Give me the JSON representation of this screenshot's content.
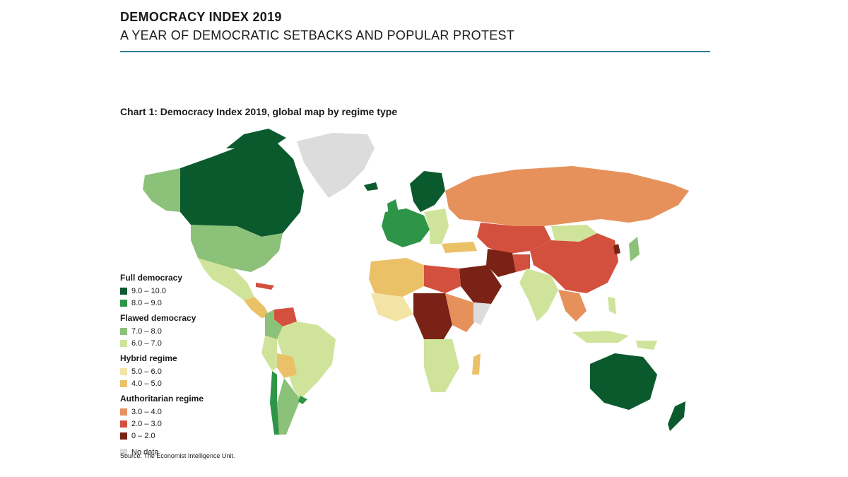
{
  "header": {
    "title": "DEMOCRACY INDEX 2019",
    "subtitle": "A YEAR OF DEMOCRATIC SETBACKS AND POPULAR PROTEST"
  },
  "chart": {
    "title": "Chart 1: Democracy Index 2019, global map by regime type",
    "source": "Source: The Economist Intelligence Unit."
  },
  "legend": [
    {
      "group": "Full democracy",
      "items": [
        {
          "label": "9.0 – 10.0",
          "color": "#0b5a2d"
        },
        {
          "label": "8.0 – 9.0",
          "color": "#2e9447"
        }
      ]
    },
    {
      "group": "Flawed democracy",
      "items": [
        {
          "label": "7.0 – 8.0",
          "color": "#8cc17a"
        },
        {
          "label": "6.0 – 7.0",
          "color": "#cfe49a"
        }
      ]
    },
    {
      "group": "Hybrid regime",
      "items": [
        {
          "label": "5.0 – 6.0",
          "color": "#f3e3a5"
        },
        {
          "label": "4.0 – 5.0",
          "color": "#ebc168"
        }
      ]
    },
    {
      "group": "Authoritarian regime",
      "items": [
        {
          "label": "3.0 – 4.0",
          "color": "#e6915c"
        },
        {
          "label": "2.0 – 3.0",
          "color": "#d3503e"
        },
        {
          "label": "0 – 2.0",
          "color": "#7a2216"
        }
      ]
    },
    {
      "group": "",
      "items": [
        {
          "label": "No data",
          "color": "#dcdcdc"
        }
      ]
    }
  ]
}
